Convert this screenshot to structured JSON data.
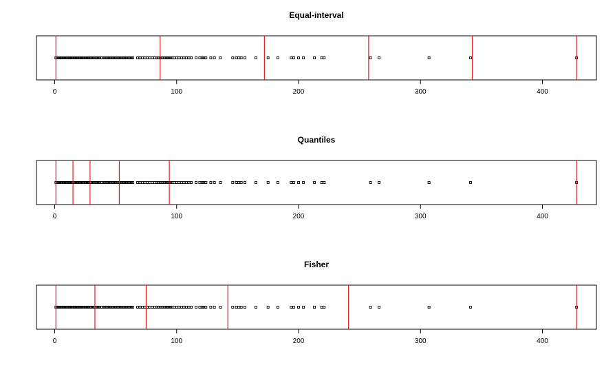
{
  "chart_data": [
    {
      "type": "scatter",
      "title": "Equal-interval",
      "xlim": [
        0,
        430
      ],
      "x_ticks": [
        0,
        100,
        200,
        300,
        400
      ],
      "break_color": "#e41a1c",
      "point_color": "#000000",
      "breaks": [
        1,
        86.5,
        172,
        257.5,
        342.5,
        428
      ],
      "x": [
        1,
        2,
        2,
        3,
        3,
        4,
        4,
        5,
        5,
        6,
        6,
        7,
        7,
        8,
        8,
        9,
        9,
        10,
        10,
        11,
        11,
        12,
        12,
        13,
        13,
        14,
        14,
        15,
        15,
        16,
        16,
        17,
        17,
        18,
        18,
        19,
        19,
        20,
        20,
        21,
        21,
        22,
        22,
        23,
        23,
        24,
        24,
        25,
        25,
        26,
        26,
        27,
        27,
        28,
        28,
        29,
        30,
        31,
        32,
        33,
        34,
        35,
        36,
        37,
        38,
        40,
        41,
        42,
        43,
        44,
        45,
        46,
        47,
        48,
        49,
        50,
        51,
        52,
        53,
        54,
        55,
        56,
        57,
        58,
        59,
        60,
        61,
        62,
        63,
        64,
        68,
        70,
        72,
        74,
        76,
        78,
        80,
        82,
        84,
        85,
        87,
        88,
        90,
        91,
        92,
        93,
        94,
        95,
        96,
        98,
        100,
        102,
        104,
        106,
        108,
        110,
        112,
        116,
        119,
        121,
        122,
        124,
        128,
        131,
        136,
        146,
        149,
        151,
        153,
        156,
        165,
        175,
        183,
        194,
        196,
        200,
        204,
        213,
        219,
        221,
        259,
        266,
        307,
        341,
        428
      ]
    },
    {
      "type": "scatter",
      "title": "Quantiles",
      "xlim": [
        0,
        430
      ],
      "x_ticks": [
        0,
        100,
        200,
        300,
        400
      ],
      "break_color": "#e41a1c",
      "point_color": "#000000",
      "breaks": [
        1,
        15,
        29,
        53,
        94,
        428
      ],
      "x": [
        1,
        2,
        2,
        3,
        3,
        4,
        4,
        5,
        5,
        6,
        6,
        7,
        7,
        8,
        8,
        9,
        9,
        10,
        10,
        11,
        11,
        12,
        12,
        13,
        13,
        14,
        14,
        15,
        15,
        16,
        16,
        17,
        17,
        18,
        18,
        19,
        19,
        20,
        20,
        21,
        21,
        22,
        22,
        23,
        23,
        24,
        24,
        25,
        25,
        26,
        26,
        27,
        27,
        28,
        28,
        29,
        30,
        31,
        32,
        33,
        34,
        35,
        36,
        37,
        38,
        40,
        41,
        42,
        43,
        44,
        45,
        46,
        47,
        48,
        49,
        50,
        51,
        52,
        53,
        54,
        55,
        56,
        57,
        58,
        59,
        60,
        61,
        62,
        63,
        64,
        68,
        70,
        72,
        74,
        76,
        78,
        80,
        82,
        84,
        85,
        87,
        88,
        90,
        91,
        92,
        93,
        94,
        95,
        96,
        98,
        100,
        102,
        104,
        106,
        108,
        110,
        112,
        116,
        119,
        121,
        122,
        124,
        128,
        131,
        136,
        146,
        149,
        151,
        153,
        156,
        165,
        175,
        183,
        194,
        196,
        200,
        204,
        213,
        219,
        221,
        259,
        266,
        307,
        341,
        428
      ]
    },
    {
      "type": "scatter",
      "title": "Fisher",
      "xlim": [
        0,
        430
      ],
      "x_ticks": [
        0,
        100,
        200,
        300,
        400
      ],
      "break_color": "#e41a1c",
      "point_color": "#000000",
      "breaks": [
        1,
        33,
        75,
        142,
        241,
        428
      ],
      "x": [
        1,
        2,
        2,
        3,
        3,
        4,
        4,
        5,
        5,
        6,
        6,
        7,
        7,
        8,
        8,
        9,
        9,
        10,
        10,
        11,
        11,
        12,
        12,
        13,
        13,
        14,
        14,
        15,
        15,
        16,
        16,
        17,
        17,
        18,
        18,
        19,
        19,
        20,
        20,
        21,
        21,
        22,
        22,
        23,
        23,
        24,
        24,
        25,
        25,
        26,
        26,
        27,
        27,
        28,
        28,
        29,
        30,
        31,
        32,
        33,
        34,
        35,
        36,
        37,
        38,
        40,
        41,
        42,
        43,
        44,
        45,
        46,
        47,
        48,
        49,
        50,
        51,
        52,
        53,
        54,
        55,
        56,
        57,
        58,
        59,
        60,
        61,
        62,
        63,
        64,
        68,
        70,
        72,
        74,
        76,
        78,
        80,
        82,
        84,
        85,
        87,
        88,
        90,
        91,
        92,
        93,
        94,
        95,
        96,
        98,
        100,
        102,
        104,
        106,
        108,
        110,
        112,
        116,
        119,
        121,
        122,
        124,
        128,
        131,
        136,
        146,
        149,
        151,
        153,
        156,
        165,
        175,
        183,
        194,
        196,
        200,
        204,
        213,
        219,
        221,
        259,
        266,
        307,
        341,
        428
      ]
    }
  ]
}
